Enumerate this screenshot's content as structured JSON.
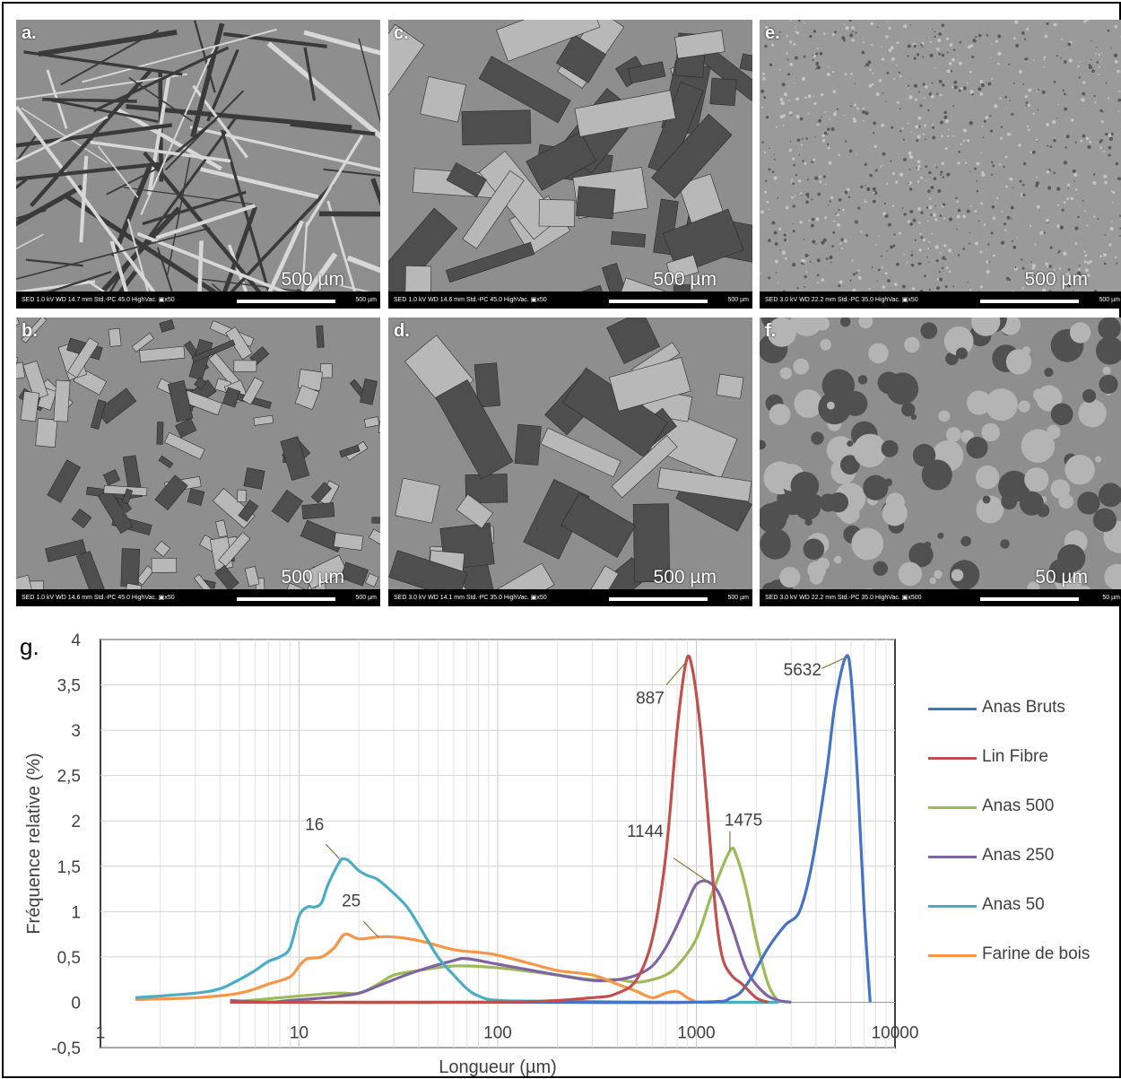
{
  "panels": [
    {
      "tag": "a.",
      "meta": "SED   1.0 kV   WD 14.7 mm   Std.-PC 45.0   HighVac.   ▣x50",
      "scale_label": "500 µm",
      "scale_small": "500 µm",
      "texture": "fibres"
    },
    {
      "tag": "b.",
      "meta": "SED   1.0 kV   WD 14.6 mm   Std.-PC 45.0   HighVac.   ▣x50",
      "scale_label": "500 µm",
      "scale_small": "500 µm",
      "texture": "shives-fine"
    },
    {
      "tag": "c.",
      "meta": "SED   1.0 kV   WD 14.6 mm   Std.-PC 45.0   HighVac.   ▣x50",
      "scale_label": "500 µm",
      "scale_small": "500 µm",
      "texture": "shives-large"
    },
    {
      "tag": "d.",
      "meta": "SED   3.0 kV   WD 14.1 mm   Std.-PC 35.0   HighVac.   ▣x50",
      "scale_label": "500 µm",
      "scale_small": "500 µm",
      "texture": "shives-blocks"
    },
    {
      "tag": "e.",
      "meta": "SED   3.0 kV   WD 22.2 mm   Std.-PC 35.0   HighVac.   ▣x50",
      "scale_label": "500 µm",
      "scale_small": "500 µm",
      "texture": "powder"
    },
    {
      "tag": "f.",
      "meta": "SED   3.0 kV   WD 22.2 mm   Std.-PC 35.0   HighVac.   ▣x500",
      "scale_label": "50 µm",
      "scale_small": "50 µm",
      "texture": "aggregates"
    }
  ],
  "panel_g_tag": "g.",
  "chart_data": {
    "type": "line",
    "xscale": "log",
    "xlim": [
      1,
      10000
    ],
    "ylim": [
      -0.5,
      4
    ],
    "xlabel": "Longueur (µm)",
    "ylabel": "Fréquence relative (%)",
    "xticks": [
      1,
      10,
      100,
      1000,
      10000
    ],
    "xtick_labels": [
      "1",
      "10",
      "100",
      "1000",
      "10000"
    ],
    "yticks": [
      -0.5,
      0,
      0.5,
      1,
      1.5,
      2,
      2.5,
      3,
      3.5,
      4
    ],
    "ytick_labels": [
      "-0,5",
      "0",
      "0,5",
      "1",
      "1,5",
      "2",
      "2,5",
      "3",
      "3,5",
      "4"
    ],
    "grid": true,
    "legend_position": "right",
    "series": [
      {
        "name": "Anas Bruts",
        "color": "#4472c4",
        "points": [
          [
            4.5,
            0
          ],
          [
            100,
            0
          ],
          [
            1000,
            0
          ],
          [
            1500,
            0.05
          ],
          [
            1800,
            0.2
          ],
          [
            2300,
            0.6
          ],
          [
            2800,
            0.85
          ],
          [
            3300,
            1.0
          ],
          [
            3800,
            1.5
          ],
          [
            4500,
            2.5
          ],
          [
            5000,
            3.3
          ],
          [
            5632,
            3.8
          ],
          [
            6000,
            3.6
          ],
          [
            6500,
            2.4
          ],
          [
            7000,
            1.0
          ],
          [
            7500,
            0
          ]
        ]
      },
      {
        "name": "Lin Fibre",
        "color": "#c0504d",
        "points": [
          [
            4.5,
            0
          ],
          [
            100,
            0
          ],
          [
            300,
            0.05
          ],
          [
            400,
            0.1
          ],
          [
            500,
            0.25
          ],
          [
            600,
            0.7
          ],
          [
            700,
            1.6
          ],
          [
            800,
            3.0
          ],
          [
            887,
            3.75
          ],
          [
            950,
            3.7
          ],
          [
            1050,
            3.0
          ],
          [
            1150,
            2.0
          ],
          [
            1250,
            1.0
          ],
          [
            1350,
            0.5
          ],
          [
            1500,
            0.3
          ],
          [
            1700,
            0.2
          ],
          [
            2000,
            0.05
          ],
          [
            2300,
            0
          ]
        ]
      },
      {
        "name": "Anas 500",
        "color": "#9bbb59",
        "points": [
          [
            4.5,
            0
          ],
          [
            8,
            0.05
          ],
          [
            15,
            0.1
          ],
          [
            20,
            0.1
          ],
          [
            25,
            0.2
          ],
          [
            30,
            0.3
          ],
          [
            40,
            0.35
          ],
          [
            60,
            0.4
          ],
          [
            100,
            0.38
          ],
          [
            200,
            0.3
          ],
          [
            300,
            0.25
          ],
          [
            400,
            0.25
          ],
          [
            500,
            0.22
          ],
          [
            600,
            0.25
          ],
          [
            700,
            0.3
          ],
          [
            800,
            0.4
          ],
          [
            1000,
            0.7
          ],
          [
            1200,
            1.2
          ],
          [
            1475,
            1.67
          ],
          [
            1600,
            1.6
          ],
          [
            1800,
            1.2
          ],
          [
            2000,
            0.7
          ],
          [
            2300,
            0.2
          ],
          [
            2600,
            0
          ]
        ]
      },
      {
        "name": "Anas 250",
        "color": "#8064a2",
        "points": [
          [
            4.5,
            0.02
          ],
          [
            7,
            0
          ],
          [
            9,
            0.02
          ],
          [
            12,
            0.04
          ],
          [
            15,
            0.06
          ],
          [
            20,
            0.1
          ],
          [
            25,
            0.18
          ],
          [
            30,
            0.25
          ],
          [
            40,
            0.35
          ],
          [
            60,
            0.46
          ],
          [
            70,
            0.48
          ],
          [
            100,
            0.42
          ],
          [
            200,
            0.3
          ],
          [
            300,
            0.24
          ],
          [
            400,
            0.25
          ],
          [
            500,
            0.3
          ],
          [
            600,
            0.4
          ],
          [
            700,
            0.6
          ],
          [
            800,
            0.85
          ],
          [
            900,
            1.1
          ],
          [
            1000,
            1.3
          ],
          [
            1144,
            1.33
          ],
          [
            1300,
            1.2
          ],
          [
            1500,
            0.85
          ],
          [
            1800,
            0.35
          ],
          [
            2200,
            0.1
          ],
          [
            2600,
            0.02
          ],
          [
            3000,
            0
          ]
        ]
      },
      {
        "name": "Anas 50",
        "color": "#4bacc6",
        "points": [
          [
            1.5,
            0.05
          ],
          [
            3,
            0.1
          ],
          [
            4,
            0.15
          ],
          [
            5,
            0.25
          ],
          [
            6,
            0.35
          ],
          [
            7,
            0.45
          ],
          [
            8,
            0.5
          ],
          [
            9,
            0.6
          ],
          [
            10,
            0.95
          ],
          [
            11,
            1.05
          ],
          [
            12,
            1.05
          ],
          [
            13,
            1.1
          ],
          [
            14,
            1.3
          ],
          [
            16,
            1.55
          ],
          [
            17,
            1.58
          ],
          [
            18,
            1.55
          ],
          [
            20,
            1.45
          ],
          [
            22,
            1.4
          ],
          [
            25,
            1.35
          ],
          [
            30,
            1.2
          ],
          [
            35,
            1.05
          ],
          [
            40,
            0.85
          ],
          [
            50,
            0.5
          ],
          [
            60,
            0.3
          ],
          [
            70,
            0.15
          ],
          [
            80,
            0.07
          ],
          [
            100,
            0.02
          ],
          [
            200,
            0.01
          ],
          [
            1000,
            0
          ],
          [
            2600,
            0
          ]
        ]
      },
      {
        "name": "Farine de bois",
        "color": "#f79646",
        "points": [
          [
            1.5,
            0.03
          ],
          [
            3,
            0.05
          ],
          [
            5,
            0.1
          ],
          [
            7,
            0.2
          ],
          [
            9,
            0.28
          ],
          [
            10,
            0.4
          ],
          [
            11,
            0.48
          ],
          [
            13,
            0.5
          ],
          [
            15,
            0.6
          ],
          [
            17,
            0.75
          ],
          [
            20,
            0.7
          ],
          [
            25,
            0.72
          ],
          [
            30,
            0.72
          ],
          [
            40,
            0.68
          ],
          [
            60,
            0.58
          ],
          [
            80,
            0.55
          ],
          [
            100,
            0.52
          ],
          [
            150,
            0.42
          ],
          [
            200,
            0.35
          ],
          [
            300,
            0.3
          ],
          [
            400,
            0.2
          ],
          [
            500,
            0.12
          ],
          [
            600,
            0.05
          ],
          [
            700,
            0.1
          ],
          [
            800,
            0.12
          ],
          [
            900,
            0.05
          ],
          [
            1000,
            0
          ]
        ]
      }
    ],
    "annotations": [
      {
        "text": "887",
        "series": "Lin Fibre",
        "x": 887,
        "y": 3.75
      },
      {
        "text": "5632",
        "series": "Anas Bruts",
        "x": 5632,
        "y": 3.8
      },
      {
        "text": "1475",
        "series": "Anas 500",
        "x": 1475,
        "y": 1.67
      },
      {
        "text": "1144",
        "series": "Anas 250",
        "x": 1144,
        "y": 1.33
      },
      {
        "text": "16",
        "series": "Anas 50",
        "x": 16,
        "y": 1.58
      },
      {
        "text": "25",
        "series": "Farine de bois",
        "x": 25,
        "y": 0.72
      }
    ]
  }
}
